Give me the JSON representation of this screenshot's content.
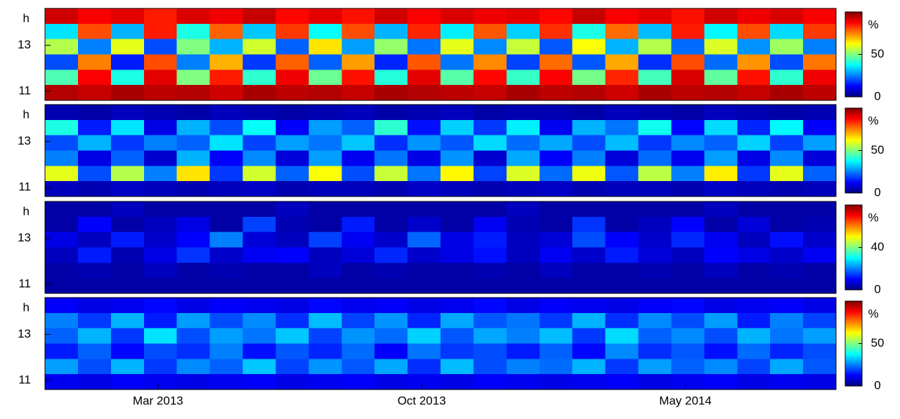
{
  "chart_data": [
    {
      "type": "heatmap",
      "ylabel": "h",
      "ylim": [
        10.6,
        14.6
      ],
      "yticks": [
        11,
        13
      ],
      "xlim": [
        "2012-12",
        "2014-09"
      ],
      "colormap": "jet",
      "clim": [
        0,
        100
      ],
      "cticks": [
        0,
        50
      ],
      "clabel": "%",
      "z": [
        [
          92,
          88,
          90,
          85,
          91,
          89,
          93,
          87,
          90,
          86,
          92,
          88,
          91,
          89,
          90,
          87,
          93,
          88,
          90,
          86,
          92,
          89,
          91,
          88
        ],
        [
          35,
          80,
          30,
          85,
          40,
          78,
          32,
          82,
          38,
          80,
          30,
          84,
          36,
          79,
          33,
          83,
          40,
          77,
          31,
          85,
          37,
          80,
          34,
          82
        ],
        [
          55,
          25,
          60,
          20,
          50,
          30,
          58,
          22,
          65,
          28,
          52,
          24,
          60,
          26,
          57,
          21,
          62,
          30,
          55,
          23,
          59,
          27,
          53,
          25
        ],
        [
          20,
          75,
          15,
          80,
          25,
          70,
          18,
          78,
          22,
          72,
          16,
          79,
          24,
          74,
          19,
          77,
          21,
          71,
          17,
          80,
          23,
          73,
          20,
          76
        ],
        [
          45,
          88,
          40,
          90,
          50,
          85,
          42,
          89,
          48,
          86,
          41,
          90,
          46,
          87,
          43,
          88,
          49,
          84,
          44,
          91,
          47,
          86,
          42,
          89
        ],
        [
          95,
          93,
          96,
          94,
          95,
          92,
          96,
          94,
          95,
          93,
          96,
          95,
          94,
          93,
          96,
          94,
          95,
          92,
          96,
          94,
          95,
          93,
          96,
          94
        ]
      ]
    },
    {
      "type": "heatmap",
      "ylabel": "h",
      "ylim": [
        10.6,
        14.6
      ],
      "yticks": [
        11,
        13
      ],
      "xlim": [
        "2012-12",
        "2014-09"
      ],
      "colormap": "jet",
      "clim": [
        0,
        100
      ],
      "cticks": [
        0,
        50
      ],
      "clabel": "%",
      "z": [
        [
          5,
          4,
          6,
          5,
          4,
          6,
          5,
          4,
          5,
          6,
          4,
          5,
          6,
          4,
          5,
          5,
          4,
          6,
          5,
          4,
          6,
          5,
          4,
          5
        ],
        [
          40,
          15,
          35,
          10,
          30,
          20,
          38,
          12,
          28,
          22,
          42,
          14,
          33,
          18,
          36,
          11,
          30,
          24,
          39,
          13,
          34,
          16,
          37,
          12
        ],
        [
          20,
          30,
          18,
          25,
          22,
          35,
          19,
          28,
          24,
          32,
          17,
          27,
          21,
          34,
          23,
          29,
          20,
          31,
          18,
          26,
          22,
          33,
          19,
          28
        ],
        [
          25,
          10,
          22,
          8,
          30,
          12,
          26,
          9,
          28,
          11,
          24,
          10,
          27,
          8,
          29,
          12,
          25,
          9,
          23,
          11,
          28,
          10,
          26,
          9
        ],
        [
          60,
          20,
          55,
          25,
          65,
          18,
          58,
          22,
          62,
          20,
          57,
          24,
          63,
          19,
          59,
          23,
          61,
          21,
          56,
          25,
          64,
          18,
          60,
          22
        ],
        [
          6,
          5,
          7,
          6,
          5,
          6,
          7,
          5,
          6,
          6,
          5,
          7,
          6,
          5,
          6,
          7,
          5,
          6,
          6,
          5,
          7,
          6,
          5,
          6
        ]
      ]
    },
    {
      "type": "heatmap",
      "ylabel": "h",
      "ylim": [
        10.6,
        14.6
      ],
      "yticks": [
        11,
        13
      ],
      "xlim": [
        "2012-12",
        "2014-09"
      ],
      "colormap": "jet",
      "clim": [
        0,
        80
      ],
      "cticks": [
        0,
        40
      ],
      "clabel": "%",
      "z": [
        [
          3,
          3,
          5,
          3,
          3,
          3,
          3,
          5,
          3,
          3,
          3,
          3,
          3,
          3,
          5,
          3,
          3,
          3,
          3,
          3,
          5,
          3,
          3,
          3
        ],
        [
          3,
          10,
          3,
          5,
          8,
          3,
          15,
          4,
          3,
          12,
          3,
          6,
          3,
          9,
          4,
          3,
          14,
          3,
          5,
          10,
          3,
          7,
          3,
          4
        ],
        [
          8,
          5,
          12,
          6,
          10,
          20,
          7,
          5,
          15,
          9,
          6,
          18,
          8,
          12,
          5,
          7,
          16,
          10,
          6,
          13,
          9,
          5,
          11,
          6
        ],
        [
          5,
          12,
          4,
          8,
          14,
          6,
          9,
          10,
          5,
          7,
          13,
          6,
          8,
          11,
          5,
          9,
          6,
          12,
          7,
          5,
          10,
          8,
          6,
          9
        ],
        [
          3,
          4,
          3,
          5,
          3,
          4,
          3,
          3,
          5,
          3,
          4,
          3,
          3,
          4,
          3,
          5,
          3,
          3,
          4,
          3,
          5,
          3,
          4,
          3
        ],
        [
          3,
          3,
          3,
          3,
          3,
          3,
          3,
          3,
          3,
          3,
          3,
          3,
          3,
          3,
          3,
          3,
          3,
          3,
          3,
          3,
          3,
          3,
          3,
          3
        ]
      ]
    },
    {
      "type": "heatmap",
      "ylabel": "h",
      "ylim": [
        10.6,
        14.6
      ],
      "yticks": [
        11,
        13
      ],
      "xlim": [
        "2012-12",
        "2014-09"
      ],
      "colormap": "jet",
      "clim": [
        0,
        100
      ],
      "cticks": [
        0,
        50
      ],
      "clabel": "%",
      "xticks": [
        {
          "value": "2013-03",
          "label": "Mar 2013"
        },
        {
          "value": "2013-10",
          "label": "Oct 2013"
        },
        {
          "value": "2014-05",
          "label": "May 2014"
        }
      ],
      "z": [
        [
          12,
          10,
          11,
          13,
          10,
          12,
          11,
          10,
          13,
          11,
          12,
          10,
          11,
          13,
          10,
          12,
          11,
          10,
          12,
          13,
          10,
          11,
          12,
          10
        ],
        [
          25,
          18,
          30,
          15,
          28,
          20,
          26,
          17,
          31,
          19,
          27,
          16,
          29,
          21,
          24,
          18,
          30,
          17,
          26,
          20,
          28,
          15,
          25,
          19
        ],
        [
          22,
          30,
          18,
          35,
          20,
          28,
          24,
          32,
          19,
          27,
          23,
          33,
          21,
          29,
          25,
          31,
          18,
          34,
          22,
          26,
          20,
          30,
          24,
          28
        ],
        [
          15,
          22,
          13,
          20,
          17,
          25,
          14,
          21,
          16,
          23,
          12,
          24,
          18,
          20,
          15,
          22,
          13,
          26,
          17,
          21,
          14,
          23,
          16,
          20
        ],
        [
          28,
          20,
          30,
          18,
          26,
          22,
          32,
          19,
          27,
          21,
          29,
          17,
          31,
          20,
          25,
          23,
          30,
          18,
          28,
          22,
          26,
          19,
          29,
          21
        ],
        [
          11,
          10,
          12,
          11,
          10,
          11,
          12,
          10,
          11,
          12,
          10,
          11,
          10,
          12,
          11,
          10,
          11,
          12,
          10,
          11,
          12,
          10,
          11,
          10
        ]
      ]
    }
  ]
}
